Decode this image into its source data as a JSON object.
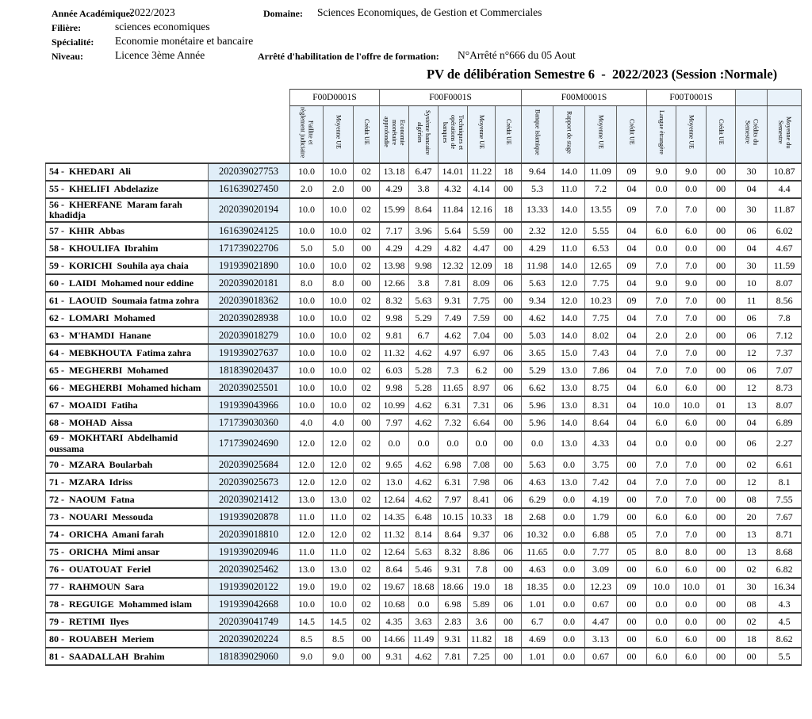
{
  "header": {
    "academic_year_label": "Année Académique:",
    "academic_year": "2022/2023",
    "domain_label": "Domaine:",
    "domain": "Sciences Economiques, de Gestion et Commerciales",
    "filiere_label": "Filière:",
    "filiere": "sciences economiques",
    "specialite_label": "Spécialité:",
    "specialite": "Economie monétaire et bancaire",
    "niveau_label": "Niveau:",
    "niveau": "Licence 3ème Année",
    "arrete_label": "Arrêté d'habilitation de l'offre de formation:",
    "arrete": "N°Arrêté n°666 du 05 Aout",
    "title": "PV de délibération Semestre 6  -  2022/2023 (Session :Normale)"
  },
  "colors": {
    "header_cell_bg": "#e9f2fa",
    "id_column_bg": "#e0eef8"
  },
  "table": {
    "unit_groups": [
      {
        "code": "F00D0001S",
        "span": 3
      },
      {
        "code": "F00F0001S",
        "span": 5
      },
      {
        "code": "F00M0001S",
        "span": 4
      },
      {
        "code": "F00T0001S",
        "span": 3
      }
    ],
    "columns": [
      "Faillite et\nrèglement judiciaire",
      "Moyenne UE",
      "Crédit UE",
      "Economie\nmonétaire\napprofondie",
      "Système bancaire\nalgérien",
      "Techniques et\nopérations de\nbanques",
      "Moyenne UE",
      "Crédit UE",
      "Banque islamique",
      "Rapport de stage",
      "Moyenne UE",
      "Crédit UE",
      "Langue étrangère",
      "Moyenne UE",
      "Crédit UE",
      "Crédits du\nSemestre",
      "Moyenne du\nSemestre"
    ],
    "rows": [
      {
        "name": "54 -  KHEDARI  Ali",
        "id": "202039027753",
        "values": [
          "10.0",
          "10.0",
          "02",
          "13.18",
          "6.47",
          "14.01",
          "11.22",
          "18",
          "9.64",
          "14.0",
          "11.09",
          "09",
          "9.0",
          "9.0",
          "00",
          "30",
          "10.87"
        ]
      },
      {
        "name": "55 -  KHELIFI  Abdelazize",
        "id": "161639027450",
        "values": [
          "2.0",
          "2.0",
          "00",
          "4.29",
          "3.8",
          "4.32",
          "4.14",
          "00",
          "5.3",
          "11.0",
          "7.2",
          "04",
          "0.0",
          "0.0",
          "00",
          "04",
          "4.4"
        ]
      },
      {
        "name": "56 -  KHERFANE  Maram farah khadidja",
        "id": "202039020194",
        "values": [
          "10.0",
          "10.0",
          "02",
          "15.99",
          "8.64",
          "11.84",
          "12.16",
          "18",
          "13.33",
          "14.0",
          "13.55",
          "09",
          "7.0",
          "7.0",
          "00",
          "30",
          "11.87"
        ]
      },
      {
        "name": "57 -  KHIR  Abbas",
        "id": "161639024125",
        "values": [
          "10.0",
          "10.0",
          "02",
          "7.17",
          "3.96",
          "5.64",
          "5.59",
          "00",
          "2.32",
          "12.0",
          "5.55",
          "04",
          "6.0",
          "6.0",
          "00",
          "06",
          "6.02"
        ]
      },
      {
        "name": "58 -  KHOULIFA  Ibrahim",
        "id": "171739022706",
        "values": [
          "5.0",
          "5.0",
          "00",
          "4.29",
          "4.29",
          "4.82",
          "4.47",
          "00",
          "4.29",
          "11.0",
          "6.53",
          "04",
          "0.0",
          "0.0",
          "00",
          "04",
          "4.67"
        ]
      },
      {
        "name": "59 -  KORICHI  Souhila aya chaia",
        "id": "191939021890",
        "values": [
          "10.0",
          "10.0",
          "02",
          "13.98",
          "9.98",
          "12.32",
          "12.09",
          "18",
          "11.98",
          "14.0",
          "12.65",
          "09",
          "7.0",
          "7.0",
          "00",
          "30",
          "11.59"
        ]
      },
      {
        "name": "60 -  LAIDI  Mohamed nour eddine",
        "id": "202039020181",
        "values": [
          "8.0",
          "8.0",
          "00",
          "12.66",
          "3.8",
          "7.81",
          "8.09",
          "06",
          "5.63",
          "12.0",
          "7.75",
          "04",
          "9.0",
          "9.0",
          "00",
          "10",
          "8.07"
        ]
      },
      {
        "name": "61 -  LAOUID  Soumaia fatma zohra",
        "id": "202039018362",
        "values": [
          "10.0",
          "10.0",
          "02",
          "8.32",
          "5.63",
          "9.31",
          "7.75",
          "00",
          "9.34",
          "12.0",
          "10.23",
          "09",
          "7.0",
          "7.0",
          "00",
          "11",
          "8.56"
        ]
      },
      {
        "name": "62 -  LOMARI  Mohamed",
        "id": "202039028938",
        "values": [
          "10.0",
          "10.0",
          "02",
          "9.98",
          "5.29",
          "7.49",
          "7.59",
          "00",
          "4.62",
          "14.0",
          "7.75",
          "04",
          "7.0",
          "7.0",
          "00",
          "06",
          "7.8"
        ]
      },
      {
        "name": "63 -  M'HAMDI  Hanane",
        "id": "202039018279",
        "values": [
          "10.0",
          "10.0",
          "02",
          "9.81",
          "6.7",
          "4.62",
          "7.04",
          "00",
          "5.03",
          "14.0",
          "8.02",
          "04",
          "2.0",
          "2.0",
          "00",
          "06",
          "7.12"
        ]
      },
      {
        "name": "64 -  MEBKHOUTA  Fatima zahra",
        "id": "191939027637",
        "values": [
          "10.0",
          "10.0",
          "02",
          "11.32",
          "4.62",
          "4.97",
          "6.97",
          "06",
          "3.65",
          "15.0",
          "7.43",
          "04",
          "7.0",
          "7.0",
          "00",
          "12",
          "7.37"
        ]
      },
      {
        "name": "65 -  MEGHERBI  Mohamed",
        "id": "181839020437",
        "values": [
          "10.0",
          "10.0",
          "02",
          "6.03",
          "5.28",
          "7.3",
          "6.2",
          "00",
          "5.29",
          "13.0",
          "7.86",
          "04",
          "7.0",
          "7.0",
          "00",
          "06",
          "7.07"
        ]
      },
      {
        "name": "66 -  MEGHERBI  Mohamed hicham",
        "id": "202039025501",
        "values": [
          "10.0",
          "10.0",
          "02",
          "9.98",
          "5.28",
          "11.65",
          "8.97",
          "06",
          "6.62",
          "13.0",
          "8.75",
          "04",
          "6.0",
          "6.0",
          "00",
          "12",
          "8.73"
        ]
      },
      {
        "name": "67 -  MOAIDI  Fatiha",
        "id": "191939043966",
        "values": [
          "10.0",
          "10.0",
          "02",
          "10.99",
          "4.62",
          "6.31",
          "7.31",
          "06",
          "5.96",
          "13.0",
          "8.31",
          "04",
          "10.0",
          "10.0",
          "01",
          "13",
          "8.07"
        ]
      },
      {
        "name": "68 -  MOHAD  Aissa",
        "id": "171739030360",
        "values": [
          "4.0",
          "4.0",
          "00",
          "7.97",
          "4.62",
          "7.32",
          "6.64",
          "00",
          "5.96",
          "14.0",
          "8.64",
          "04",
          "6.0",
          "6.0",
          "00",
          "04",
          "6.89"
        ]
      },
      {
        "name": "69 -  MOKHTARI  Abdelhamid oussama",
        "id": "171739024690",
        "values": [
          "12.0",
          "12.0",
          "02",
          "0.0",
          "0.0",
          "0.0",
          "0.0",
          "00",
          "0.0",
          "13.0",
          "4.33",
          "04",
          "0.0",
          "0.0",
          "00",
          "06",
          "2.27"
        ]
      },
      {
        "name": "70 -  MZARA  Boularbah",
        "id": "202039025684",
        "values": [
          "12.0",
          "12.0",
          "02",
          "9.65",
          "4.62",
          "6.98",
          "7.08",
          "00",
          "5.63",
          "0.0",
          "3.75",
          "00",
          "7.0",
          "7.0",
          "00",
          "02",
          "6.61"
        ]
      },
      {
        "name": "71 -  MZARA  Idriss",
        "id": "202039025673",
        "values": [
          "12.0",
          "12.0",
          "02",
          "13.0",
          "4.62",
          "6.31",
          "7.98",
          "06",
          "4.63",
          "13.0",
          "7.42",
          "04",
          "7.0",
          "7.0",
          "00",
          "12",
          "8.1"
        ]
      },
      {
        "name": "72 -  NAOUM  Fatna",
        "id": "202039021412",
        "values": [
          "13.0",
          "13.0",
          "02",
          "12.64",
          "4.62",
          "7.97",
          "8.41",
          "06",
          "6.29",
          "0.0",
          "4.19",
          "00",
          "7.0",
          "7.0",
          "00",
          "08",
          "7.55"
        ]
      },
      {
        "name": "73 -  NOUARI  Messouda",
        "id": "191939020878",
        "values": [
          "11.0",
          "11.0",
          "02",
          "14.35",
          "6.48",
          "10.15",
          "10.33",
          "18",
          "2.68",
          "0.0",
          "1.79",
          "00",
          "6.0",
          "6.0",
          "00",
          "20",
          "7.67"
        ]
      },
      {
        "name": "74 -  ORICHA  Amani farah",
        "id": "202039018810",
        "values": [
          "12.0",
          "12.0",
          "02",
          "11.32",
          "8.14",
          "8.64",
          "9.37",
          "06",
          "10.32",
          "0.0",
          "6.88",
          "05",
          "7.0",
          "7.0",
          "00",
          "13",
          "8.71"
        ]
      },
      {
        "name": "75 -  ORICHA  Mimi ansar",
        "id": "191939020946",
        "values": [
          "11.0",
          "11.0",
          "02",
          "12.64",
          "5.63",
          "8.32",
          "8.86",
          "06",
          "11.65",
          "0.0",
          "7.77",
          "05",
          "8.0",
          "8.0",
          "00",
          "13",
          "8.68"
        ]
      },
      {
        "name": "76 -  OUATOUAT  Feriel",
        "id": "202039025462",
        "values": [
          "13.0",
          "13.0",
          "02",
          "8.64",
          "5.46",
          "9.31",
          "7.8",
          "00",
          "4.63",
          "0.0",
          "3.09",
          "00",
          "6.0",
          "6.0",
          "00",
          "02",
          "6.82"
        ]
      },
      {
        "name": "77 -  RAHMOUN  Sara",
        "id": "191939020122",
        "values": [
          "19.0",
          "19.0",
          "02",
          "19.67",
          "18.68",
          "18.66",
          "19.0",
          "18",
          "18.35",
          "0.0",
          "12.23",
          "09",
          "10.0",
          "10.0",
          "01",
          "30",
          "16.34"
        ]
      },
      {
        "name": "78 -  REGUIGE  Mohammed islam",
        "id": "191939042668",
        "values": [
          "10.0",
          "10.0",
          "02",
          "10.68",
          "0.0",
          "6.98",
          "5.89",
          "06",
          "1.01",
          "0.0",
          "0.67",
          "00",
          "0.0",
          "0.0",
          "00",
          "08",
          "4.3"
        ]
      },
      {
        "name": "79 -  RETIMI  Ilyes",
        "id": "202039041749",
        "values": [
          "14.5",
          "14.5",
          "02",
          "4.35",
          "3.63",
          "2.83",
          "3.6",
          "00",
          "6.7",
          "0.0",
          "4.47",
          "00",
          "0.0",
          "0.0",
          "00",
          "02",
          "4.5"
        ]
      },
      {
        "name": "80 -  ROUABEH  Meriem",
        "id": "202039020224",
        "values": [
          "8.5",
          "8.5",
          "00",
          "14.66",
          "11.49",
          "9.31",
          "11.82",
          "18",
          "4.69",
          "0.0",
          "3.13",
          "00",
          "6.0",
          "6.0",
          "00",
          "18",
          "8.62"
        ]
      },
      {
        "name": "81 -  SAADALLAH  Brahim",
        "id": "181839029060",
        "values": [
          "9.0",
          "9.0",
          "00",
          "9.31",
          "4.62",
          "7.81",
          "7.25",
          "00",
          "1.01",
          "0.0",
          "0.67",
          "00",
          "6.0",
          "6.0",
          "00",
          "00",
          "5.5"
        ]
      }
    ]
  }
}
